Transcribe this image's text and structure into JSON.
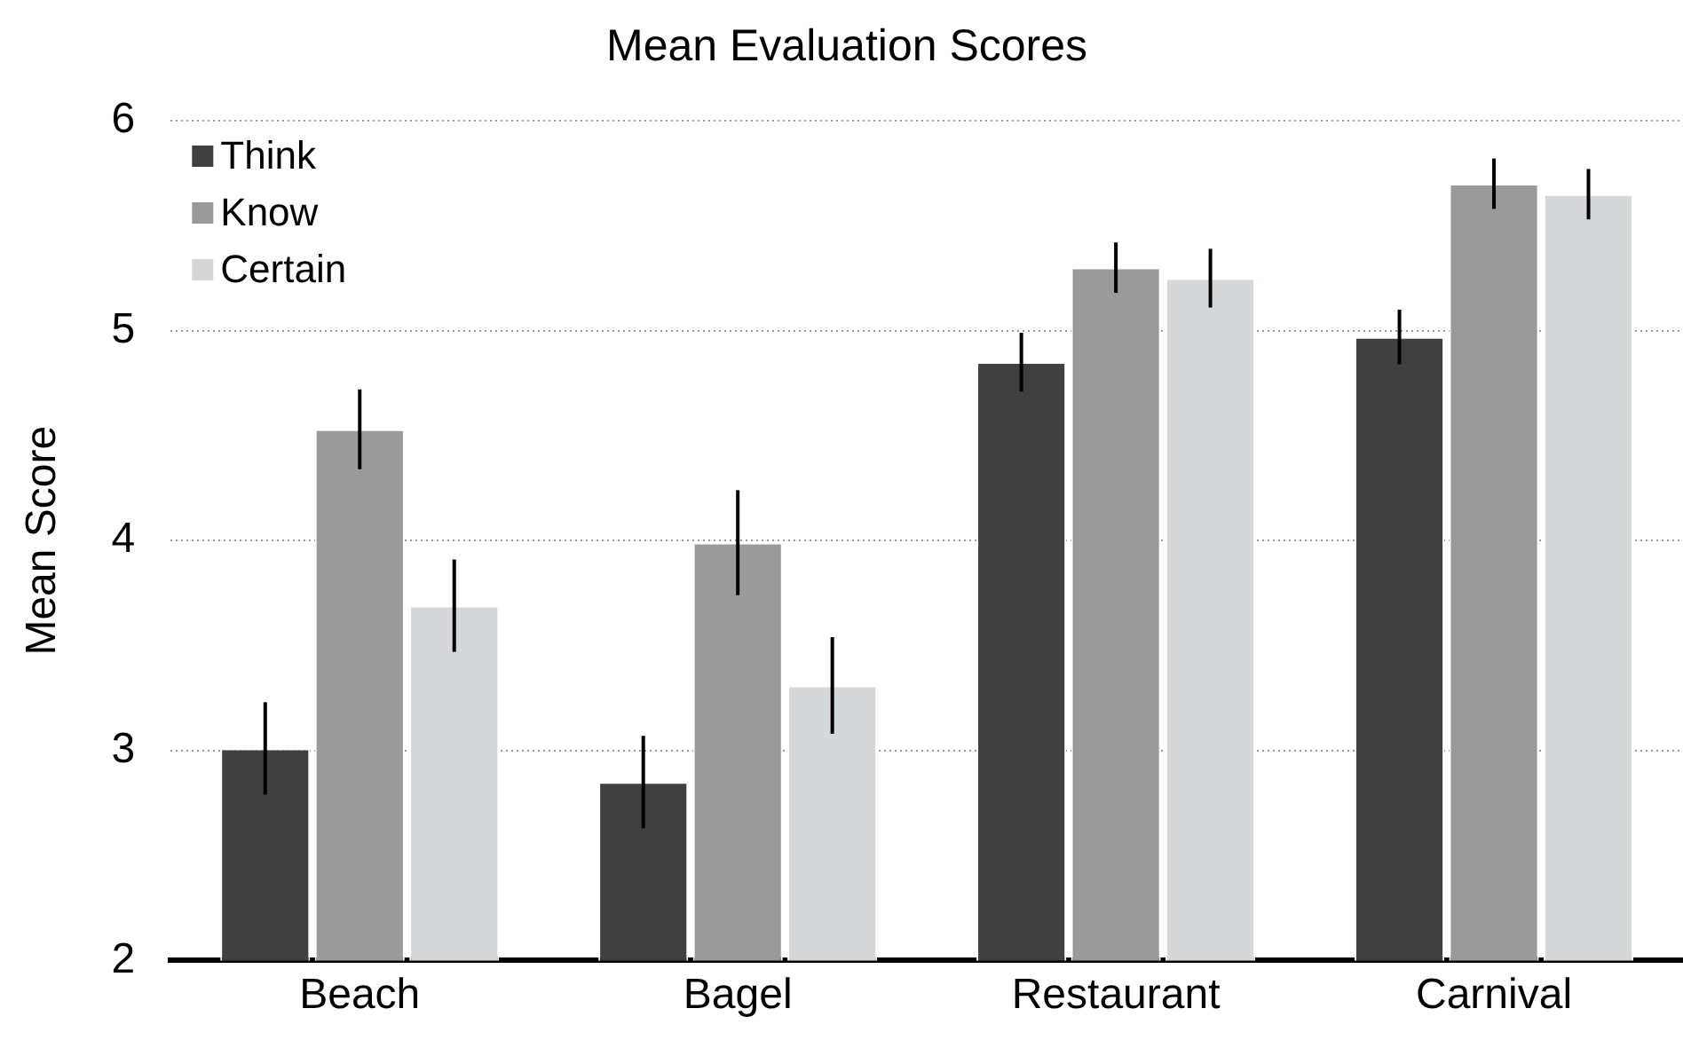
{
  "chart_data": {
    "type": "bar",
    "title": "Mean Evaluation Scores",
    "ylabel": "Mean Score",
    "categories": [
      "Beach",
      "Bagel",
      "Restaurant",
      "Carnival"
    ],
    "series": [
      {
        "name": "Think",
        "color": "#404040",
        "values": [
          3.01,
          2.85,
          4.85,
          4.97
        ],
        "errors": [
          0.22,
          0.22,
          0.14,
          0.13
        ]
      },
      {
        "name": "Know",
        "color": "#999a99",
        "values": [
          4.53,
          3.99,
          5.3,
          5.7
        ],
        "errors": [
          0.19,
          0.25,
          0.12,
          0.12
        ]
      },
      {
        "name": "Certain",
        "color": "#d5d8d8",
        "values": [
          3.69,
          3.31,
          5.25,
          5.65
        ],
        "errors": [
          0.22,
          0.23,
          0.14,
          0.12
        ]
      }
    ],
    "ylim": [
      2,
      6
    ],
    "yticks": [
      2,
      3,
      4,
      5,
      6
    ],
    "grid": "y",
    "legend": "top left"
  }
}
